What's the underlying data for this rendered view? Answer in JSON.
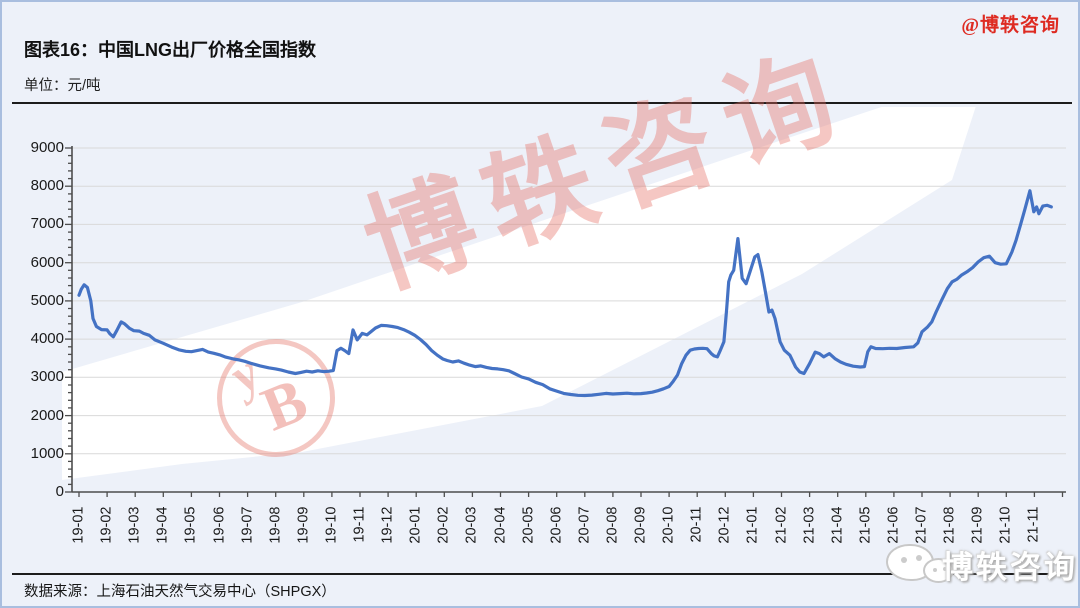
{
  "header": {
    "brand_handle": "@博轶咨询",
    "title": "图表16：中国LNG出厂价格全国指数",
    "unit": "单位：元/吨"
  },
  "footer": {
    "source": "数据来源：上海石油天然气交易中心（SHPGX）"
  },
  "watermark": {
    "text": "博轶咨询",
    "logo_letter": "B",
    "logo_accent": "y",
    "bottom_text": "博轶咨询"
  },
  "colors": {
    "accent_red": "#de2b22",
    "series_blue": "#4472c4",
    "watermark_pink": "#e46c62",
    "grid_gray": "#d9d9d9",
    "axis_gray": "#4d4d4d",
    "page_bg": "#edf1f9"
  },
  "chart_data": {
    "type": "line",
    "title": "中国LNG出厂价格全国指数",
    "value_unit": "元/吨",
    "x_unit": "months, 0 = 19-01",
    "ylim": [
      0,
      9000
    ],
    "ytick_step": 1000,
    "ytick_labels": [
      "0",
      "1000",
      "2000",
      "3000",
      "4000",
      "5000",
      "6000",
      "7000",
      "8000",
      "9000"
    ],
    "xtick_labels": [
      "19-01",
      "19-02",
      "19-03",
      "19-04",
      "19-05",
      "19-06",
      "19-07",
      "19-08",
      "19-09",
      "19-10",
      "19-11",
      "19-12",
      "20-01",
      "20-02",
      "20-03",
      "20-04",
      "20-05",
      "20-06",
      "20-07",
      "20-08",
      "20-09",
      "20-10",
      "20-11",
      "20-12",
      "21-01",
      "21-02",
      "21-03",
      "21-04",
      "21-05",
      "21-06",
      "21-07",
      "21-08",
      "21-09",
      "21-10",
      "21-11"
    ],
    "grid": "horizontal",
    "legend": "none",
    "series": [
      {
        "name": "中国LNG出厂价格全国指数",
        "points": [
          [
            0,
            5150
          ],
          [
            0.08,
            5300
          ],
          [
            0.18,
            5420
          ],
          [
            0.3,
            5350
          ],
          [
            0.42,
            5000
          ],
          [
            0.5,
            4540
          ],
          [
            0.62,
            4330
          ],
          [
            0.8,
            4250
          ],
          [
            1,
            4240
          ],
          [
            1.1,
            4140
          ],
          [
            1.22,
            4060
          ],
          [
            1.35,
            4230
          ],
          [
            1.5,
            4450
          ],
          [
            1.62,
            4400
          ],
          [
            1.8,
            4280
          ],
          [
            1.95,
            4220
          ],
          [
            2.15,
            4210
          ],
          [
            2.3,
            4150
          ],
          [
            2.5,
            4100
          ],
          [
            2.7,
            3980
          ],
          [
            3,
            3890
          ],
          [
            3.3,
            3790
          ],
          [
            3.55,
            3720
          ],
          [
            3.8,
            3680
          ],
          [
            4,
            3670
          ],
          [
            4.2,
            3700
          ],
          [
            4.4,
            3730
          ],
          [
            4.6,
            3660
          ],
          [
            4.8,
            3630
          ],
          [
            5,
            3590
          ],
          [
            5.2,
            3535
          ],
          [
            5.5,
            3480
          ],
          [
            5.7,
            3455
          ],
          [
            5.9,
            3420
          ],
          [
            6.15,
            3360
          ],
          [
            6.45,
            3300
          ],
          [
            6.75,
            3250
          ],
          [
            7,
            3220
          ],
          [
            7.2,
            3190
          ],
          [
            7.45,
            3140
          ],
          [
            7.7,
            3100
          ],
          [
            7.9,
            3130
          ],
          [
            8.1,
            3160
          ],
          [
            8.3,
            3140
          ],
          [
            8.5,
            3170
          ],
          [
            8.7,
            3150
          ],
          [
            8.9,
            3160
          ],
          [
            9.05,
            3180
          ],
          [
            9.18,
            3700
          ],
          [
            9.32,
            3760
          ],
          [
            9.46,
            3700
          ],
          [
            9.6,
            3620
          ],
          [
            9.75,
            4240
          ],
          [
            9.9,
            3980
          ],
          [
            10.08,
            4150
          ],
          [
            10.25,
            4110
          ],
          [
            10.4,
            4200
          ],
          [
            10.55,
            4290
          ],
          [
            10.75,
            4360
          ],
          [
            10.95,
            4350
          ],
          [
            11.15,
            4330
          ],
          [
            11.35,
            4300
          ],
          [
            11.55,
            4250
          ],
          [
            11.75,
            4180
          ],
          [
            11.95,
            4100
          ],
          [
            12.15,
            3990
          ],
          [
            12.35,
            3860
          ],
          [
            12.55,
            3700
          ],
          [
            12.75,
            3580
          ],
          [
            12.95,
            3480
          ],
          [
            13.1,
            3440
          ],
          [
            13.3,
            3400
          ],
          [
            13.5,
            3430
          ],
          [
            13.7,
            3370
          ],
          [
            13.9,
            3320
          ],
          [
            14.1,
            3280
          ],
          [
            14.3,
            3300
          ],
          [
            14.5,
            3260
          ],
          [
            14.7,
            3230
          ],
          [
            14.9,
            3220
          ],
          [
            15.1,
            3200
          ],
          [
            15.3,
            3170
          ],
          [
            15.5,
            3100
          ],
          [
            15.75,
            3010
          ],
          [
            16,
            2960
          ],
          [
            16.25,
            2870
          ],
          [
            16.5,
            2810
          ],
          [
            16.75,
            2700
          ],
          [
            17,
            2640
          ],
          [
            17.25,
            2580
          ],
          [
            17.5,
            2550
          ],
          [
            17.75,
            2530
          ],
          [
            18,
            2525
          ],
          [
            18.25,
            2535
          ],
          [
            18.5,
            2555
          ],
          [
            18.75,
            2580
          ],
          [
            19,
            2565
          ],
          [
            19.25,
            2575
          ],
          [
            19.5,
            2585
          ],
          [
            19.75,
            2570
          ],
          [
            20,
            2575
          ],
          [
            20.2,
            2590
          ],
          [
            20.4,
            2610
          ],
          [
            20.6,
            2650
          ],
          [
            20.8,
            2700
          ],
          [
            21,
            2760
          ],
          [
            21.15,
            2900
          ],
          [
            21.3,
            3060
          ],
          [
            21.45,
            3360
          ],
          [
            21.6,
            3580
          ],
          [
            21.75,
            3710
          ],
          [
            21.9,
            3740
          ],
          [
            22.05,
            3755
          ],
          [
            22.2,
            3760
          ],
          [
            22.35,
            3750
          ],
          [
            22.5,
            3620
          ],
          [
            22.6,
            3560
          ],
          [
            22.72,
            3535
          ],
          [
            22.82,
            3700
          ],
          [
            22.95,
            3930
          ],
          [
            23.05,
            4800
          ],
          [
            23.12,
            5500
          ],
          [
            23.2,
            5680
          ],
          [
            23.3,
            5800
          ],
          [
            23.45,
            6630
          ],
          [
            23.6,
            5590
          ],
          [
            23.74,
            5450
          ],
          [
            23.88,
            5760
          ],
          [
            24.05,
            6150
          ],
          [
            24.16,
            6210
          ],
          [
            24.3,
            5760
          ],
          [
            24.45,
            5150
          ],
          [
            24.55,
            4710
          ],
          [
            24.66,
            4760
          ],
          [
            24.77,
            4540
          ],
          [
            24.95,
            3930
          ],
          [
            25.1,
            3710
          ],
          [
            25.3,
            3580
          ],
          [
            25.5,
            3270
          ],
          [
            25.65,
            3140
          ],
          [
            25.8,
            3100
          ],
          [
            26,
            3360
          ],
          [
            26.2,
            3660
          ],
          [
            26.35,
            3620
          ],
          [
            26.5,
            3535
          ],
          [
            26.7,
            3620
          ],
          [
            26.9,
            3490
          ],
          [
            27.1,
            3400
          ],
          [
            27.3,
            3340
          ],
          [
            27.55,
            3290
          ],
          [
            27.8,
            3270
          ],
          [
            27.95,
            3280
          ],
          [
            28.07,
            3670
          ],
          [
            28.18,
            3800
          ],
          [
            28.35,
            3755
          ],
          [
            28.6,
            3750
          ],
          [
            28.85,
            3760
          ],
          [
            29.1,
            3755
          ],
          [
            29.4,
            3780
          ],
          [
            29.7,
            3800
          ],
          [
            29.85,
            3900
          ],
          [
            30,
            4190
          ],
          [
            30.2,
            4320
          ],
          [
            30.35,
            4450
          ],
          [
            30.5,
            4710
          ],
          [
            30.7,
            5020
          ],
          [
            30.9,
            5320
          ],
          [
            31.07,
            5500
          ],
          [
            31.25,
            5570
          ],
          [
            31.4,
            5670
          ],
          [
            31.6,
            5760
          ],
          [
            31.8,
            5870
          ],
          [
            32,
            6020
          ],
          [
            32.2,
            6130
          ],
          [
            32.4,
            6170
          ],
          [
            32.6,
            6000
          ],
          [
            32.8,
            5960
          ],
          [
            33,
            5970
          ],
          [
            33.2,
            6280
          ],
          [
            33.35,
            6590
          ],
          [
            33.5,
            6980
          ],
          [
            33.65,
            7370
          ],
          [
            33.84,
            7880
          ],
          [
            33.98,
            7330
          ],
          [
            34.08,
            7460
          ],
          [
            34.16,
            7280
          ],
          [
            34.3,
            7480
          ],
          [
            34.45,
            7500
          ],
          [
            34.6,
            7460
          ]
        ]
      }
    ]
  }
}
